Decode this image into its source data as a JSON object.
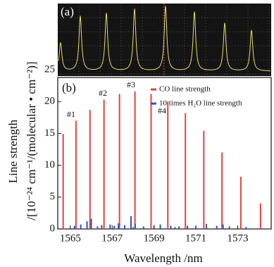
{
  "chart_data": {
    "type": "stem",
    "panel_a_label": "(a)",
    "panel_b_label": "(b)",
    "xlabel": "Wavelength /nm",
    "ylabel": "Line strength",
    "ylabel_units": "/[10⁻²⁴ cm⁻¹/(molecular • cm⁻²)]",
    "xlim": [
      1564.4,
      1574.6
    ],
    "xticks": [
      1565,
      1567,
      1569,
      1571,
      1573
    ],
    "ylim": [
      0,
      25
    ],
    "yticks": [
      0,
      5,
      10,
      15,
      20,
      25
    ],
    "legend": "upper right",
    "annotations": [
      "#1",
      "#2",
      "#3",
      "#4"
    ],
    "series": [
      {
        "name": "CO line strength",
        "color": "#e8413c",
        "x": [
          1564.66,
          1565.27,
          1565.94,
          1566.61,
          1567.35,
          1568.09,
          1568.86,
          1569.66,
          1570.5,
          1571.38,
          1572.25,
          1573.15,
          1574.09
        ],
        "values": [
          14.9,
          17.0,
          18.7,
          20.3,
          21.2,
          21.6,
          21.2,
          20.0,
          18.2,
          15.4,
          12.0,
          8.2,
          4.0
        ]
      },
      {
        "name": "10 times H₂O line strength",
        "color": "#2a52be",
        "x": [
          1565.2,
          1565.5,
          1565.8,
          1566.0,
          1566.3,
          1566.5,
          1566.9,
          1567.1,
          1567.3,
          1567.6,
          1567.9,
          1568.1,
          1568.5,
          1569.0,
          1569.3,
          1569.8,
          1570.2,
          1570.6,
          1571.0,
          1571.5,
          1572.0,
          1572.3,
          1572.6,
          1573.4
        ],
        "values": [
          0.5,
          0.7,
          1.2,
          1.6,
          0.4,
          0.6,
          0.7,
          0.5,
          0.9,
          0.6,
          2.0,
          0.8,
          0.4,
          0.6,
          0.7,
          0.5,
          0.4,
          0.5,
          0.4,
          0.8,
          0.5,
          0.7,
          0.4,
          0.3
        ]
      }
    ]
  }
}
